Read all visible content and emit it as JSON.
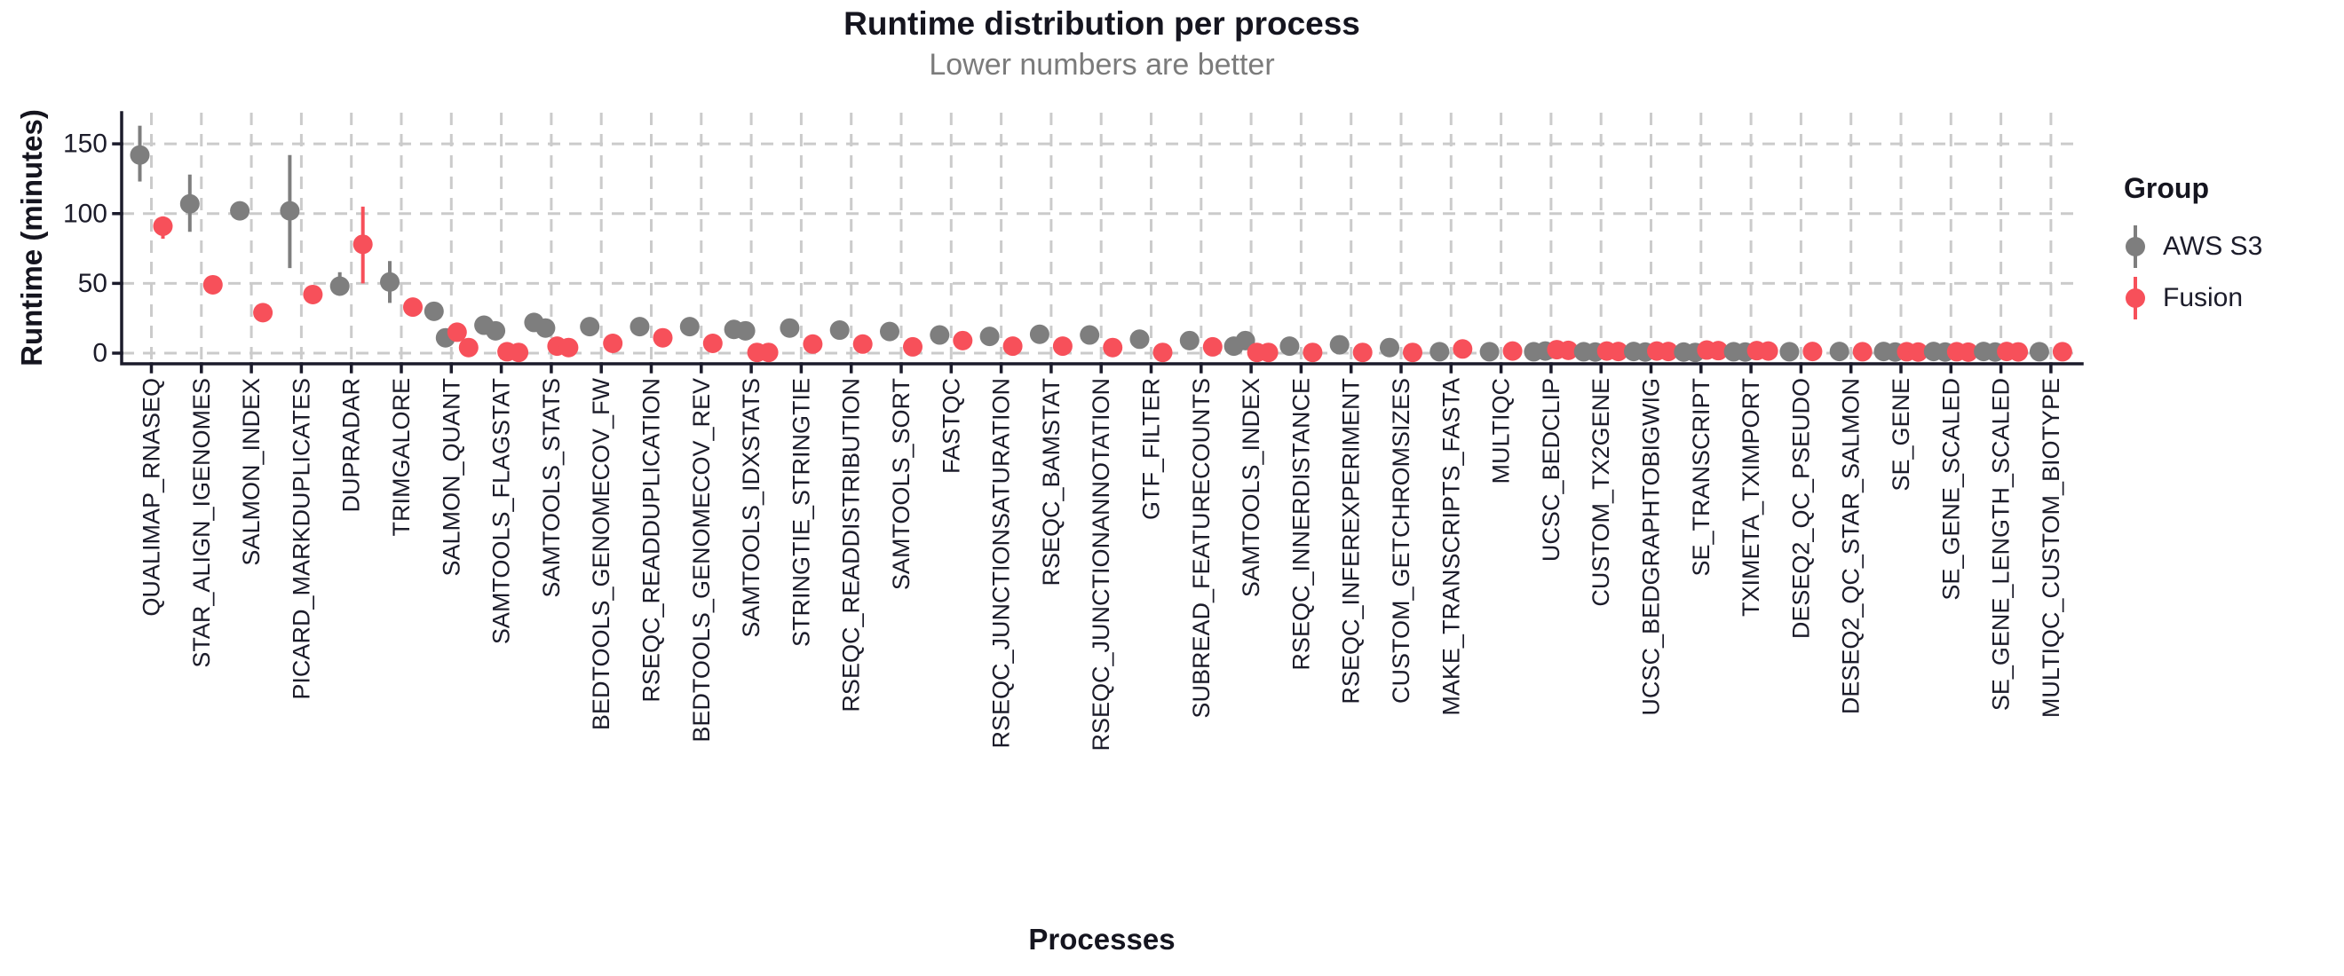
{
  "chart_data": {
    "type": "pointrange",
    "title": "Runtime distribution per process",
    "subtitle": "Lower numbers are better",
    "xlabel": "Processes",
    "ylabel": "Runtime (minutes)",
    "yticks": [
      0,
      50,
      100,
      150
    ],
    "ylim": [
      0,
      172
    ],
    "grid": "dashed, major x and y",
    "legend": {
      "title": "Group",
      "position": "right",
      "entries": [
        {
          "key": "aws",
          "label": "AWS S3",
          "color": "#7e7e7e"
        },
        {
          "key": "fusion",
          "label": "Fusion",
          "color": "#f7505a"
        }
      ]
    },
    "processes": [
      {
        "name": "QUALIMAP_RNASEQ",
        "aws": {
          "points": [
            142
          ],
          "range": [
            123,
            163
          ]
        },
        "fusion": {
          "points": [
            91
          ],
          "range": [
            82,
            98
          ]
        }
      },
      {
        "name": "STAR_ALIGN_IGENOMES",
        "aws": {
          "points": [
            107
          ],
          "range": [
            87,
            128
          ]
        },
        "fusion": {
          "points": [
            49
          ]
        }
      },
      {
        "name": "SALMON_INDEX",
        "aws": {
          "points": [
            102
          ]
        },
        "fusion": {
          "points": [
            29
          ]
        }
      },
      {
        "name": "PICARD_MARKDUPLICATES",
        "aws": {
          "points": [
            102
          ],
          "range": [
            61,
            142
          ]
        },
        "fusion": {
          "points": [
            42
          ]
        }
      },
      {
        "name": "DUPRADAR",
        "aws": {
          "points": [
            48
          ],
          "range": [
            42,
            58
          ]
        },
        "fusion": {
          "points": [
            78
          ],
          "range": [
            50,
            105
          ]
        }
      },
      {
        "name": "TRIMGALORE",
        "aws": {
          "points": [
            51
          ],
          "range": [
            36,
            66
          ]
        },
        "fusion": {
          "points": [
            33
          ]
        }
      },
      {
        "name": "SALMON_QUANT",
        "aws": {
          "points": [
            30,
            11
          ]
        },
        "fusion": {
          "points": [
            15,
            4
          ]
        }
      },
      {
        "name": "SAMTOOLS_FLAGSTAT",
        "aws": {
          "points": [
            20,
            16
          ]
        },
        "fusion": {
          "points": [
            1,
            0.5
          ]
        }
      },
      {
        "name": "SAMTOOLS_STATS",
        "aws": {
          "points": [
            22,
            18
          ]
        },
        "fusion": {
          "points": [
            5,
            4
          ]
        }
      },
      {
        "name": "BEDTOOLS_GENOMECOV_FW",
        "aws": {
          "points": [
            19
          ]
        },
        "fusion": {
          "points": [
            7
          ]
        }
      },
      {
        "name": "RSEQC_READDUPLICATION",
        "aws": {
          "points": [
            19
          ]
        },
        "fusion": {
          "points": [
            11
          ]
        }
      },
      {
        "name": "BEDTOOLS_GENOMECOV_REV",
        "aws": {
          "points": [
            19
          ]
        },
        "fusion": {
          "points": [
            7
          ]
        }
      },
      {
        "name": "SAMTOOLS_IDXSTATS",
        "aws": {
          "points": [
            17,
            16
          ]
        },
        "fusion": {
          "points": [
            0.5,
            0.5
          ]
        }
      },
      {
        "name": "STRINGTIE_STRINGTIE",
        "aws": {
          "points": [
            18
          ]
        },
        "fusion": {
          "points": [
            6.5
          ]
        }
      },
      {
        "name": "RSEQC_READDISTRIBUTION",
        "aws": {
          "points": [
            16.5
          ]
        },
        "fusion": {
          "points": [
            6.5
          ]
        }
      },
      {
        "name": "SAMTOOLS_SORT",
        "aws": {
          "points": [
            15.5
          ],
          "range": [
            11,
            20
          ]
        },
        "fusion": {
          "points": [
            4.5
          ]
        }
      },
      {
        "name": "FASTQC",
        "aws": {
          "points": [
            13
          ]
        },
        "fusion": {
          "points": [
            9
          ]
        }
      },
      {
        "name": "RSEQC_JUNCTIONSATURATION",
        "aws": {
          "points": [
            12
          ]
        },
        "fusion": {
          "points": [
            5
          ]
        }
      },
      {
        "name": "RSEQC_BAMSTAT",
        "aws": {
          "points": [
            13.5
          ]
        },
        "fusion": {
          "points": [
            5
          ]
        }
      },
      {
        "name": "RSEQC_JUNCTIONANNOTATION",
        "aws": {
          "points": [
            13
          ]
        },
        "fusion": {
          "points": [
            4
          ]
        }
      },
      {
        "name": "GTF_FILTER",
        "aws": {
          "points": [
            10
          ]
        },
        "fusion": {
          "points": [
            0.5
          ]
        }
      },
      {
        "name": "SUBREAD_FEATURECOUNTS",
        "aws": {
          "points": [
            9
          ]
        },
        "fusion": {
          "points": [
            4.5
          ]
        }
      },
      {
        "name": "SAMTOOLS_INDEX",
        "aws": {
          "points": [
            5,
            9
          ]
        },
        "fusion": {
          "points": [
            0.5,
            0.5
          ]
        }
      },
      {
        "name": "RSEQC_INNERDISTANCE",
        "aws": {
          "points": [
            5
          ]
        },
        "fusion": {
          "points": [
            0.5
          ]
        }
      },
      {
        "name": "RSEQC_INFEREXPERIMENT",
        "aws": {
          "points": [
            6
          ]
        },
        "fusion": {
          "points": [
            0.5
          ]
        }
      },
      {
        "name": "CUSTOM_GETCHROMSIZES",
        "aws": {
          "points": [
            4
          ]
        },
        "fusion": {
          "points": [
            0.5
          ]
        }
      },
      {
        "name": "MAKE_TRANSCRIPTS_FASTA",
        "aws": {
          "points": [
            1
          ]
        },
        "fusion": {
          "points": [
            3
          ]
        }
      },
      {
        "name": "MULTIQC",
        "aws": {
          "points": [
            1
          ]
        },
        "fusion": {
          "points": [
            1.5
          ]
        }
      },
      {
        "name": "UCSC_BEDCLIP",
        "aws": {
          "points": [
            1,
            1.5
          ]
        },
        "fusion": {
          "points": [
            2.5,
            2
          ]
        }
      },
      {
        "name": "CUSTOM_TX2GENE",
        "aws": {
          "points": [
            1,
            0.8
          ]
        },
        "fusion": {
          "points": [
            1.5,
            1.2
          ]
        }
      },
      {
        "name": "UCSC_BEDGRAPHTOBIGWIG",
        "aws": {
          "points": [
            1.2,
            0.8
          ]
        },
        "fusion": {
          "points": [
            1.5,
            1.2
          ]
        }
      },
      {
        "name": "SE_TRANSCRIPT",
        "aws": {
          "points": [
            0.8,
            0.5
          ]
        },
        "fusion": {
          "points": [
            2.2,
            1.8
          ]
        }
      },
      {
        "name": "TXIMETA_TXIMPORT",
        "aws": {
          "points": [
            1,
            0.8
          ]
        },
        "fusion": {
          "points": [
            1.8,
            1.5
          ]
        }
      },
      {
        "name": "DESEQ2_QC_PSEUDO",
        "aws": {
          "points": [
            1
          ]
        },
        "fusion": {
          "points": [
            1.2
          ]
        }
      },
      {
        "name": "DESEQ2_QC_STAR_SALMON",
        "aws": {
          "points": [
            1.2
          ]
        },
        "fusion": {
          "points": [
            1
          ]
        }
      },
      {
        "name": "SE_GENE",
        "aws": {
          "points": [
            1.2,
            0.8
          ]
        },
        "fusion": {
          "points": [
            1,
            0.8
          ]
        }
      },
      {
        "name": "SE_GENE_SCALED",
        "aws": {
          "points": [
            1.2,
            0.8
          ]
        },
        "fusion": {
          "points": [
            1,
            0.7
          ]
        }
      },
      {
        "name": "SE_GENE_LENGTH_SCALED",
        "aws": {
          "points": [
            1.2,
            0.8
          ]
        },
        "fusion": {
          "points": [
            1.2,
            0.9
          ]
        }
      },
      {
        "name": "MULTIQC_CUSTOM_BIOTYPE",
        "aws": {
          "points": [
            1
          ]
        },
        "fusion": {
          "points": [
            1
          ]
        }
      }
    ]
  }
}
